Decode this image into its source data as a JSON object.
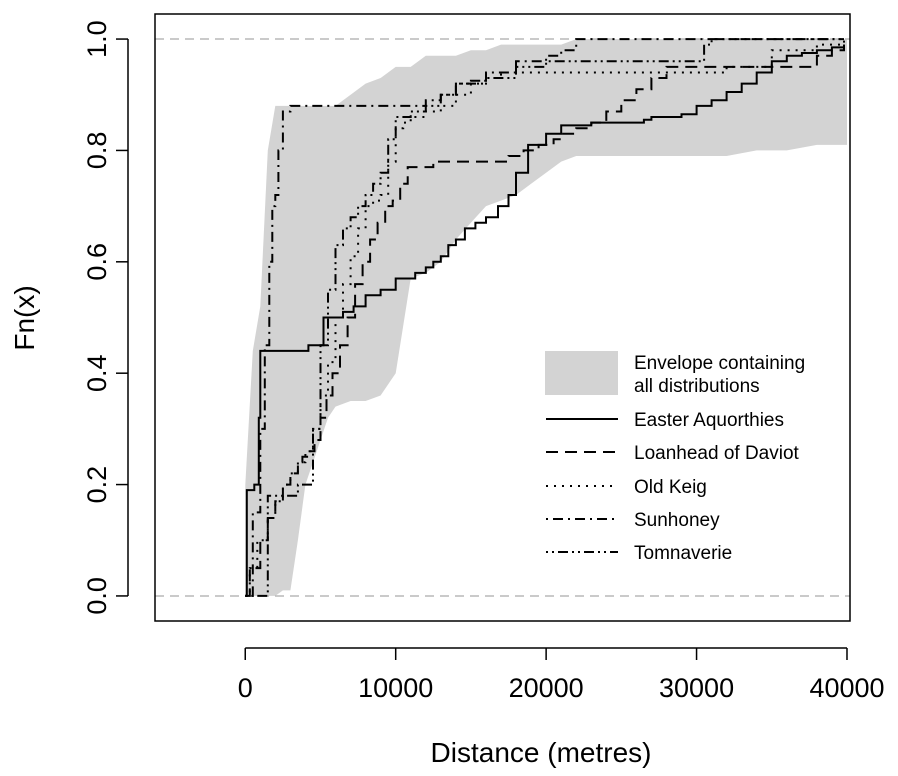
{
  "colors": {
    "envelope": "#d3d3d3",
    "lines": "#000000",
    "refline": "#b8b8b8",
    "axes": "#000000"
  },
  "chart_data": {
    "type": "line",
    "subtype": "empirical cumulative distribution (step)",
    "title": "",
    "xlabel": "Distance (metres)",
    "ylabel": "Fn(x)",
    "xlim": [
      -6000,
      40200
    ],
    "ylim": [
      -0.045,
      1.045
    ],
    "xticks": [
      0,
      10000,
      20000,
      30000,
      40000
    ],
    "xtick_labels": [
      "0",
      "10000",
      "20000",
      "30000",
      "40000"
    ],
    "yticks": [
      0.0,
      0.2,
      0.4,
      0.6,
      0.8,
      1.0
    ],
    "ytick_labels": [
      "0.0",
      "0.2",
      "0.4",
      "0.6",
      "0.8",
      "1.0"
    ],
    "reference_lines_y": [
      0.0,
      1.0
    ],
    "grid": false,
    "legend_position": "center-right",
    "envelope": {
      "label": "Envelope containing all distributions",
      "label_lines": [
        "Envelope containing",
        "all distributions"
      ],
      "x": [
        0,
        500,
        1000,
        1500,
        2000,
        2500,
        3000,
        3500,
        4000,
        4500,
        5000,
        5500,
        6000,
        7000,
        8000,
        9000,
        10000,
        11000,
        12000,
        13000,
        14000,
        15000,
        16000,
        17000,
        18000,
        19000,
        20000,
        21000,
        22000,
        24000,
        26000,
        28000,
        30000,
        32000,
        34000,
        36000,
        38000,
        40000
      ],
      "upper": [
        0.2,
        0.44,
        0.52,
        0.8,
        0.88,
        0.88,
        0.88,
        0.88,
        0.88,
        0.88,
        0.88,
        0.88,
        0.88,
        0.9,
        0.92,
        0.93,
        0.95,
        0.95,
        0.97,
        0.97,
        0.97,
        0.98,
        0.98,
        0.99,
        0.99,
        0.99,
        0.99,
        0.99,
        1.0,
        1.0,
        1.0,
        1.0,
        1.0,
        1.0,
        1.0,
        1.0,
        1.0,
        1.0
      ],
      "lower": [
        0.0,
        0.0,
        0.0,
        0.0,
        0.0,
        0.01,
        0.01,
        0.1,
        0.2,
        0.24,
        0.28,
        0.32,
        0.34,
        0.35,
        0.35,
        0.36,
        0.4,
        0.57,
        0.58,
        0.6,
        0.64,
        0.67,
        0.7,
        0.71,
        0.72,
        0.74,
        0.76,
        0.78,
        0.79,
        0.79,
        0.79,
        0.79,
        0.79,
        0.79,
        0.8,
        0.8,
        0.81,
        0.81
      ]
    },
    "series": [
      {
        "name": "Easter Aquorthies",
        "linestyle": "solid",
        "x": [
          0,
          100,
          600,
          900,
          1000,
          4000,
          4200,
          5000,
          5200,
          5800,
          6500,
          7200,
          8000,
          9000,
          10000,
          10800,
          11300,
          12000,
          12500,
          13000,
          13500,
          14000,
          14600,
          15300,
          16000,
          16800,
          17500,
          18000,
          18800,
          20000,
          21000,
          22000,
          23000,
          24000,
          25000,
          26000,
          26500,
          27000,
          28000,
          29000,
          30000,
          31000,
          32000,
          33000,
          34000,
          35000,
          36000,
          37000,
          38000,
          39000,
          39800
        ],
        "y": [
          0.0,
          0.19,
          0.2,
          0.32,
          0.44,
          0.44,
          0.45,
          0.45,
          0.5,
          0.5,
          0.51,
          0.52,
          0.54,
          0.55,
          0.57,
          0.57,
          0.58,
          0.59,
          0.6,
          0.61,
          0.63,
          0.64,
          0.66,
          0.67,
          0.68,
          0.7,
          0.72,
          0.76,
          0.81,
          0.83,
          0.845,
          0.845,
          0.85,
          0.85,
          0.85,
          0.85,
          0.855,
          0.86,
          0.86,
          0.865,
          0.88,
          0.89,
          0.905,
          0.92,
          0.94,
          0.96,
          0.97,
          0.975,
          0.98,
          0.985,
          0.99
        ]
      },
      {
        "name": "Loanhead of Daviot",
        "linestyle": "dashed",
        "x": [
          0,
          300,
          1000,
          1500,
          2000,
          2500,
          3000,
          3500,
          3800,
          4200,
          4600,
          5000,
          5400,
          5800,
          6300,
          6800,
          7300,
          7800,
          8300,
          8800,
          9300,
          9800,
          10300,
          10800,
          11500,
          12500,
          13500,
          14500,
          15500,
          16500,
          17500,
          18500,
          19500,
          20500,
          21000,
          22000,
          23000,
          24000,
          25000,
          26000,
          27000,
          28000,
          30000,
          32000,
          34000,
          35000,
          36000,
          38000,
          39000,
          39800
        ],
        "y": [
          0.0,
          0.05,
          0.1,
          0.14,
          0.17,
          0.2,
          0.22,
          0.24,
          0.25,
          0.26,
          0.28,
          0.32,
          0.36,
          0.4,
          0.45,
          0.5,
          0.56,
          0.6,
          0.64,
          0.67,
          0.7,
          0.71,
          0.74,
          0.77,
          0.77,
          0.78,
          0.78,
          0.78,
          0.78,
          0.78,
          0.79,
          0.8,
          0.81,
          0.82,
          0.83,
          0.84,
          0.85,
          0.87,
          0.89,
          0.91,
          0.93,
          0.95,
          0.95,
          0.95,
          0.95,
          0.95,
          0.95,
          0.97,
          0.98,
          0.99
        ]
      },
      {
        "name": "Old Keig",
        "linestyle": "dotted",
        "x": [
          0,
          300,
          800,
          1500,
          2000,
          2500,
          3000,
          3500,
          4000,
          4500,
          5000,
          5500,
          6000,
          6500,
          7000,
          7500,
          8000,
          8500,
          9000,
          9500,
          10000,
          10500,
          11000,
          12000,
          13000,
          14000,
          15000,
          16000,
          17000,
          18000,
          20000,
          22000,
          25000,
          28000,
          30000,
          32000,
          35000,
          38000,
          39800
        ],
        "y": [
          0.0,
          0.05,
          0.1,
          0.14,
          0.17,
          0.2,
          0.22,
          0.24,
          0.26,
          0.3,
          0.36,
          0.42,
          0.5,
          0.56,
          0.61,
          0.66,
          0.7,
          0.71,
          0.72,
          0.78,
          0.84,
          0.85,
          0.86,
          0.87,
          0.88,
          0.9,
          0.92,
          0.93,
          0.94,
          0.94,
          0.94,
          0.94,
          0.94,
          0.94,
          0.94,
          0.95,
          0.98,
          0.99,
          1.0
        ]
      },
      {
        "name": "Sunhoney",
        "linestyle": "dashdot",
        "x": [
          0,
          500,
          1000,
          1300,
          1600,
          1800,
          2000,
          2200,
          2500,
          3000,
          4000,
          6000,
          8000,
          10000,
          11000,
          12000,
          13000,
          14000,
          16000,
          18000,
          20000,
          21000,
          22000,
          25000,
          28000,
          30000,
          35000,
          38000,
          39800
        ],
        "y": [
          0.0,
          0.15,
          0.3,
          0.45,
          0.6,
          0.7,
          0.72,
          0.8,
          0.87,
          0.88,
          0.88,
          0.88,
          0.88,
          0.88,
          0.88,
          0.89,
          0.9,
          0.92,
          0.94,
          0.96,
          0.97,
          0.98,
          1.0,
          1.0,
          1.0,
          1.0,
          1.0,
          1.0,
          1.0
        ]
      },
      {
        "name": "Tomnaverie",
        "linestyle": "dashdotdot",
        "x": [
          0,
          1500,
          3000,
          3500,
          4500,
          5000,
          5500,
          6000,
          6500,
          7000,
          7500,
          8000,
          8500,
          9000,
          9500,
          10000,
          11000,
          12000,
          13000,
          14000,
          15000,
          16000,
          18000,
          20000,
          22000,
          25000,
          28000,
          30000,
          30500,
          31000,
          35000,
          38000,
          39800
        ],
        "y": [
          0.0,
          0.18,
          0.18,
          0.2,
          0.3,
          0.45,
          0.55,
          0.63,
          0.66,
          0.68,
          0.7,
          0.72,
          0.74,
          0.76,
          0.82,
          0.86,
          0.87,
          0.88,
          0.9,
          0.92,
          0.925,
          0.93,
          0.95,
          0.96,
          0.96,
          0.96,
          0.96,
          0.96,
          0.99,
          1.0,
          1.0,
          1.0,
          1.0
        ]
      }
    ]
  }
}
